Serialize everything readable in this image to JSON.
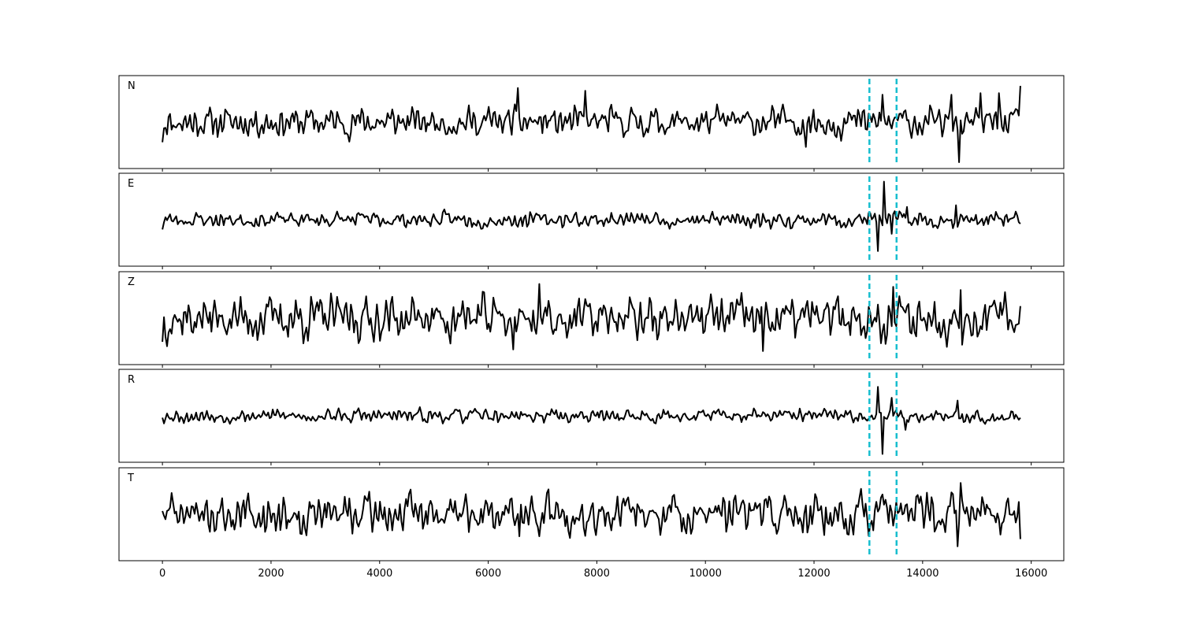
{
  "chart_data": {
    "type": "line",
    "title": "",
    "xlabel": "",
    "ylabel": "",
    "xlim": [
      -800,
      16600
    ],
    "x_ticks": [
      0,
      2000,
      4000,
      6000,
      8000,
      10000,
      12000,
      14000,
      16000
    ],
    "x_tick_labels": [
      "0",
      "2000",
      "4000",
      "6000",
      "8000",
      "10000",
      "12000",
      "14000",
      "16000"
    ],
    "x_range": [
      0,
      15800
    ],
    "grid": false,
    "legend": "none",
    "trace_color": "#000000",
    "marker_color": "#17becf",
    "markers": [
      13020,
      13520
    ],
    "panels": [
      {
        "label": "N",
        "amplitude": 0.28,
        "seed": 11,
        "end_value": 0.9,
        "bursts": [
          {
            "x": 6550,
            "value": 0.85
          },
          {
            "x": 7780,
            "value": 0.78
          },
          {
            "x": 11850,
            "value": -0.62
          },
          {
            "x": 13250,
            "value": 0.68
          },
          {
            "x": 14680,
            "value": -1.0
          },
          {
            "x": 14540,
            "value": 0.68
          },
          {
            "x": 15080,
            "value": 0.72
          },
          {
            "x": 15400,
            "value": 0.72
          }
        ]
      },
      {
        "label": "E",
        "amplitude": 0.15,
        "seed": 23,
        "end_value": -0.1,
        "bursts": [
          {
            "x": 13180,
            "value": -0.78
          },
          {
            "x": 13300,
            "value": 0.95
          },
          {
            "x": 13420,
            "value": -0.35
          },
          {
            "x": 13700,
            "value": 0.32
          },
          {
            "x": 14620,
            "value": 0.36
          }
        ]
      },
      {
        "label": "Z",
        "amplitude": 0.42,
        "seed": 37,
        "end_value": 0.3,
        "bursts": [
          {
            "x": 6460,
            "value": -0.78
          },
          {
            "x": 6950,
            "value": 0.85
          },
          {
            "x": 11050,
            "value": -0.82
          },
          {
            "x": 13460,
            "value": 0.78
          },
          {
            "x": 14700,
            "value": 0.7
          }
        ]
      },
      {
        "label": "R",
        "amplitude": 0.13,
        "seed": 53,
        "end_value": -0.05,
        "bursts": [
          {
            "x": 13180,
            "value": 0.72
          },
          {
            "x": 13260,
            "value": -0.95
          },
          {
            "x": 13420,
            "value": 0.45
          },
          {
            "x": 13680,
            "value": -0.35
          },
          {
            "x": 14640,
            "value": 0.38
          }
        ]
      },
      {
        "label": "T",
        "amplitude": 0.38,
        "seed": 71,
        "end_value": -0.62,
        "bursts": [
          {
            "x": 6580,
            "value": -0.55
          },
          {
            "x": 7120,
            "value": 0.62
          },
          {
            "x": 12180,
            "value": -0.52
          },
          {
            "x": 14640,
            "value": -0.8
          },
          {
            "x": 14700,
            "value": 0.78
          }
        ]
      }
    ]
  }
}
